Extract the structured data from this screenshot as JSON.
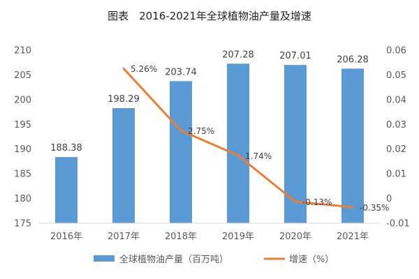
{
  "chart_data": {
    "type": "bar",
    "title": "图表　2016-2021年全球植物油产量及增速",
    "categories": [
      "2016年",
      "2017年",
      "2018年",
      "2019年",
      "2020年",
      "2021年"
    ],
    "series": [
      {
        "name": "全球植物油产量（百万吨）",
        "type": "bar",
        "y_axis": "left",
        "color": "#5B9BD5",
        "values": [
          188.38,
          198.29,
          203.74,
          207.28,
          207.01,
          206.28
        ],
        "labels": [
          "188.38",
          "198.29",
          "203.74",
          "207.28",
          "207.01",
          "206.28"
        ]
      },
      {
        "name": "增速（%）",
        "type": "line",
        "y_axis": "right",
        "color": "#ED7D31",
        "values": [
          null,
          0.0526,
          0.0275,
          0.0174,
          -0.0013,
          -0.0035
        ],
        "labels": [
          null,
          "5.26%",
          "2.75%",
          "1.74%",
          "-0.13%",
          "-0.35%"
        ]
      }
    ],
    "y_left": {
      "range": [
        175,
        210
      ],
      "ticks": [
        "175",
        "180",
        "185",
        "190",
        "195",
        "200",
        "205",
        "210"
      ]
    },
    "y_right": {
      "range": [
        -0.01,
        0.06
      ],
      "ticks": [
        "-0.01",
        "0",
        "0.01",
        "0.02",
        "0.03",
        "0.04",
        "0.05",
        "0.06"
      ]
    },
    "grid": false,
    "legend": "bottom"
  }
}
